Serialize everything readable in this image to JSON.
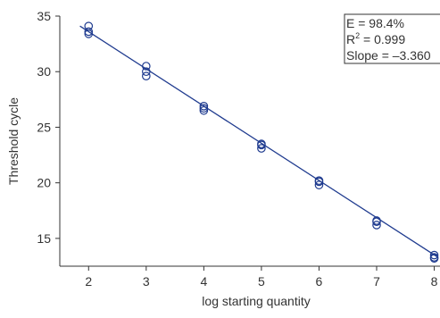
{
  "chart_data": {
    "type": "scatter",
    "xlabel": "log starting quantity",
    "ylabel": "Threshold cycle",
    "xlim": [
      1.5,
      8.1
    ],
    "ylim": [
      12.5,
      35
    ],
    "x_ticks": [
      "2",
      "3",
      "4",
      "5",
      "6",
      "7",
      "8"
    ],
    "y_ticks": [
      "15",
      "20",
      "25",
      "30",
      "35"
    ],
    "points": [
      {
        "x": 2,
        "y": 34.1
      },
      {
        "x": 2,
        "y": 33.6
      },
      {
        "x": 2,
        "y": 33.4
      },
      {
        "x": 3,
        "y": 30.5
      },
      {
        "x": 3,
        "y": 30.0
      },
      {
        "x": 3,
        "y": 29.6
      },
      {
        "x": 4,
        "y": 26.9
      },
      {
        "x": 4,
        "y": 26.7
      },
      {
        "x": 4,
        "y": 26.5
      },
      {
        "x": 5,
        "y": 23.5
      },
      {
        "x": 5,
        "y": 23.4
      },
      {
        "x": 5,
        "y": 23.1
      },
      {
        "x": 6,
        "y": 20.2
      },
      {
        "x": 6,
        "y": 20.1
      },
      {
        "x": 6,
        "y": 19.8
      },
      {
        "x": 7,
        "y": 16.6
      },
      {
        "x": 7,
        "y": 16.5
      },
      {
        "x": 7,
        "y": 16.2
      },
      {
        "x": 8,
        "y": 13.5
      },
      {
        "x": 8,
        "y": 13.3
      },
      {
        "x": 8,
        "y": 13.2
      }
    ],
    "fit_line": {
      "x": [
        1.85,
        8.05
      ],
      "y": [
        34.1,
        13.35
      ]
    },
    "stats": {
      "efficiency": "E = 98.4%",
      "r2_prefix": "R",
      "r2_exponent": "2",
      "r2_value": " = 0.999",
      "slope": "Slope = –3.360"
    },
    "legend_position": "top-right",
    "grid": false,
    "colors": {
      "series": "#1f3b8f",
      "axis": "#333333"
    }
  }
}
